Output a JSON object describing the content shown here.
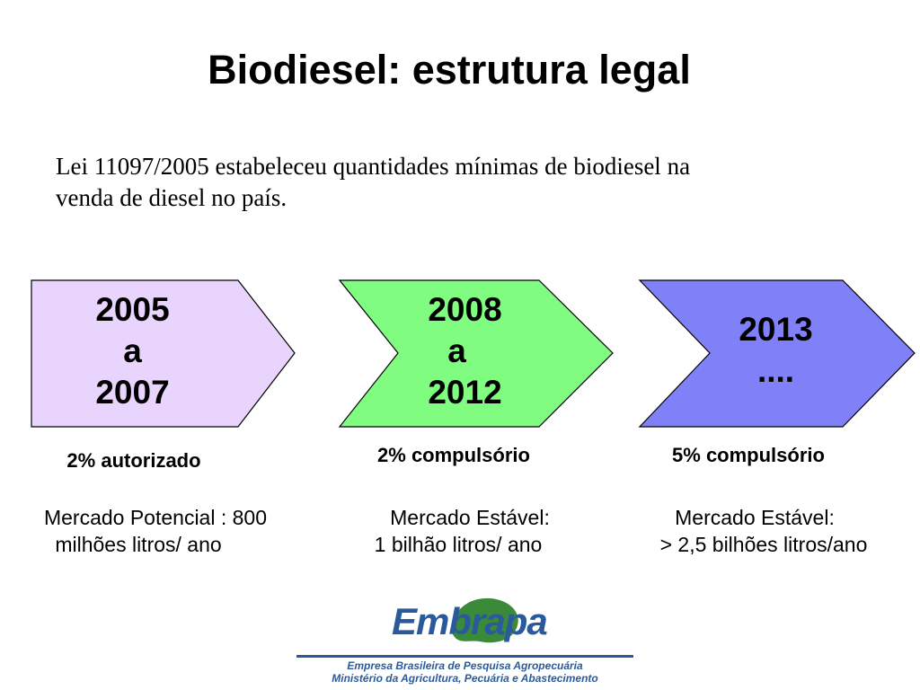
{
  "title": "Biodiesel: estrutura legal",
  "intro": {
    "line1": "Lei 11097/2005 estabeleceu quantidades mínimas de biodiesel na",
    "line2": "venda  de diesel no país."
  },
  "stages": [
    {
      "lines": [
        "2005",
        "a",
        "2007"
      ],
      "share": "2% autorizado",
      "market": [
        "Mercado Potencial : 800",
        "milhões litros/ ano"
      ],
      "fill": "#e8d4fc"
    },
    {
      "lines": [
        "2008",
        "a",
        "2012"
      ],
      "share": "2% compulsório",
      "market": [
        "Mercado Estável:",
        "1 bilhão litros/ ano"
      ],
      "fill": "#80fc80"
    },
    {
      "lines": [
        "2013",
        "...."
      ],
      "share": "5% compulsório",
      "market": [
        "Mercado Estável:",
        "> 2,5 bilhões litros/ano"
      ],
      "fill": "#8080f8"
    }
  ],
  "logo": {
    "wordmark": "Embrapa",
    "line1": "Empresa Brasileira de Pesquisa Agropecuária",
    "line2": "Ministério da Agricultura, Pecuária e Abastecimento",
    "color": "#2a5a9c",
    "accent": "#3a8a3a"
  }
}
